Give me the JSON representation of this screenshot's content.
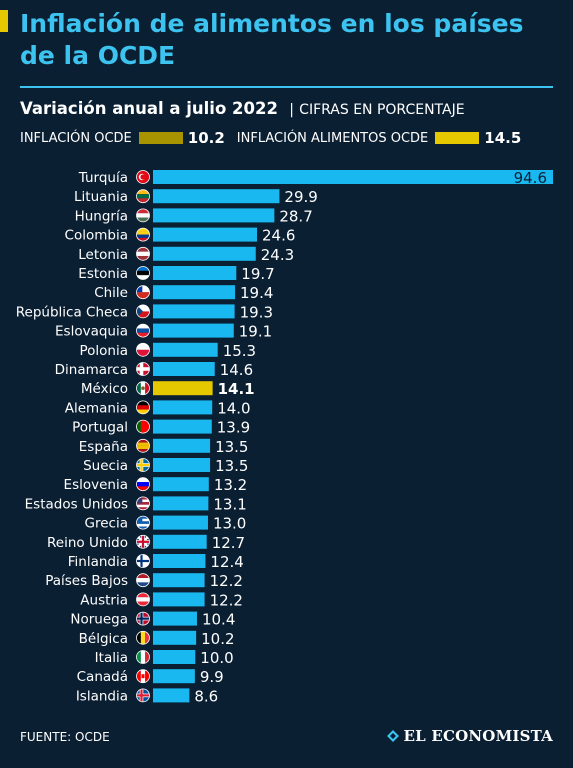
{
  "header": {
    "title": "Inflación de alimentos en los países de la OCDE",
    "subtitle_main": "Variación anual a julio 2022",
    "subtitle_sep": "|",
    "subtitle_note": "CIFRAS EN PORCENTAJE"
  },
  "legend": {
    "items": [
      {
        "label": "INFLACIÓN OCDE",
        "value": "10.2",
        "color": "#a89400"
      },
      {
        "label": "INFLACIÓN ALIMENTOS OCDE",
        "value": "14.5",
        "color": "#e6c800"
      }
    ]
  },
  "colors": {
    "background": "#0b1f33",
    "title": "#3cc3f0",
    "bar": "#1ab8f0",
    "highlight_bar": "#e6c800",
    "text": "#ffffff"
  },
  "chart_data": {
    "type": "bar",
    "orientation": "horizontal",
    "categories": [
      "Turquía",
      "Lituania",
      "Hungría",
      "Colombia",
      "Letonia",
      "Estonia",
      "Chile",
      "República Checa",
      "Eslovaquia",
      "Polonia",
      "Dinamarca",
      "México",
      "Alemania",
      "Portugal",
      "España",
      "Suecia",
      "Eslovenia",
      "Estados Unidos",
      "Grecia",
      "Reino Unido",
      "Finlandia",
      "Países Bajos",
      "Austria",
      "Noruega",
      "Bélgica",
      "Italia",
      "Canadá",
      "Islandia"
    ],
    "values": [
      94.6,
      29.9,
      28.7,
      24.6,
      24.3,
      19.7,
      19.4,
      19.3,
      19.1,
      15.3,
      14.6,
      14.1,
      14.0,
      13.9,
      13.5,
      13.5,
      13.2,
      13.1,
      13.0,
      12.7,
      12.4,
      12.2,
      12.2,
      10.4,
      10.2,
      10.0,
      9.9,
      8.6
    ],
    "value_labels": [
      "94.6",
      "29.9",
      "28.7",
      "24.6",
      "24.3",
      "19.7",
      "19.4",
      "19.3",
      "19.1",
      "15.3",
      "14.6",
      "14.1",
      "14.0",
      "13.9",
      "13.5",
      "13.5",
      "13.2",
      "13.1",
      "13.0",
      "12.7",
      "12.4",
      "12.2",
      "12.2",
      "10.4",
      "10.2",
      "10.0",
      "9.9",
      "8.6"
    ],
    "highlight": "México",
    "flag_icons": [
      "turkey-flag-icon",
      "lithuania-flag-icon",
      "hungary-flag-icon",
      "colombia-flag-icon",
      "latvia-flag-icon",
      "estonia-flag-icon",
      "chile-flag-icon",
      "czech-flag-icon",
      "slovakia-flag-icon",
      "poland-flag-icon",
      "denmark-flag-icon",
      "mexico-flag-icon",
      "germany-flag-icon",
      "portugal-flag-icon",
      "spain-flag-icon",
      "sweden-flag-icon",
      "slovenia-flag-icon",
      "usa-flag-icon",
      "greece-flag-icon",
      "uk-flag-icon",
      "finland-flag-icon",
      "netherlands-flag-icon",
      "austria-flag-icon",
      "norway-flag-icon",
      "belgium-flag-icon",
      "italy-flag-icon",
      "canada-flag-icon",
      "iceland-flag-icon"
    ],
    "xlim": [
      0,
      94.6
    ],
    "grid": false,
    "legend_position": "top"
  },
  "footer": {
    "source": "FUENTE: OCDE",
    "brand": "EL ECONOMISTA"
  }
}
